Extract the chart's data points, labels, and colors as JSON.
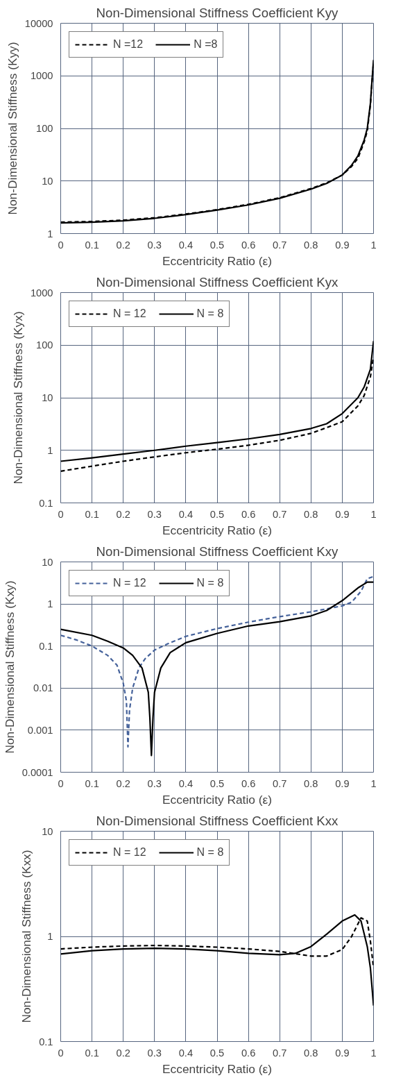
{
  "chart_data": [
    {
      "type": "line",
      "title": "Non-Dimensional Stiffness Coefficient Kyy",
      "xlabel": "Eccentricity Ratio (ε)",
      "ylabel": "Non-Dimensional Stiffness (Kyy)",
      "log": "y",
      "grid": true,
      "legend": "top left",
      "xlim": [
        0,
        1
      ],
      "xticks": [
        0,
        0.1,
        0.2,
        0.3,
        0.4,
        0.5,
        0.6,
        0.7,
        0.8,
        0.9,
        1
      ],
      "ylim": [
        1,
        10000
      ],
      "yticks": [
        1,
        10,
        100,
        1000,
        10000
      ],
      "series": [
        {
          "name": "N =12",
          "color": "#000000",
          "line_style": "dashed",
          "x": [
            0,
            0.1,
            0.2,
            0.3,
            0.4,
            0.5,
            0.6,
            0.7,
            0.8,
            0.85,
            0.9,
            0.93,
            0.95,
            0.97,
            0.98,
            0.99,
            0.995,
            1.0
          ],
          "values": [
            1.65,
            1.7,
            1.8,
            2.0,
            2.35,
            2.85,
            3.6,
            4.8,
            7.2,
            9.2,
            13,
            19,
            27,
            55,
            90,
            280,
            750,
            1800
          ]
        },
        {
          "name": "N =8",
          "color": "#000000",
          "line_style": "solid",
          "x": [
            0,
            0.1,
            0.2,
            0.3,
            0.4,
            0.5,
            0.6,
            0.7,
            0.8,
            0.85,
            0.9,
            0.93,
            0.95,
            0.97,
            0.98,
            0.99,
            0.995,
            1.0
          ],
          "values": [
            1.6,
            1.65,
            1.75,
            1.95,
            2.3,
            2.8,
            3.5,
            4.7,
            7,
            9,
            13,
            20,
            30,
            60,
            100,
            300,
            800,
            2000
          ]
        }
      ]
    },
    {
      "type": "line",
      "title": "Non-Dimensional Stiffness Coefficient Kyx",
      "xlabel": "Eccentricity Ratio (ε)",
      "ylabel": "Non-Dimensional Stiffness (Kyx)",
      "log": "y",
      "grid": true,
      "legend": "top left",
      "xlim": [
        0,
        1
      ],
      "xticks": [
        0,
        0.1,
        0.2,
        0.3,
        0.4,
        0.5,
        0.6,
        0.7,
        0.8,
        0.9,
        1
      ],
      "ylim": [
        0.1,
        1000
      ],
      "yticks": [
        0.1,
        1,
        10,
        100,
        1000
      ],
      "series": [
        {
          "name": "N = 12",
          "color": "#000000",
          "line_style": "dashed",
          "x": [
            0,
            0.1,
            0.2,
            0.3,
            0.4,
            0.5,
            0.6,
            0.7,
            0.8,
            0.85,
            0.9,
            0.95,
            0.97,
            0.99,
            1.0
          ],
          "values": [
            0.4,
            0.5,
            0.62,
            0.75,
            0.9,
            1.05,
            1.25,
            1.55,
            2.1,
            2.7,
            3.5,
            7,
            11,
            25,
            60
          ]
        },
        {
          "name": "N = 8",
          "color": "#000000",
          "line_style": "solid",
          "x": [
            0,
            0.1,
            0.2,
            0.3,
            0.4,
            0.5,
            0.6,
            0.7,
            0.8,
            0.85,
            0.9,
            0.95,
            0.97,
            0.99,
            1.0
          ],
          "values": [
            0.62,
            0.72,
            0.85,
            1.0,
            1.2,
            1.4,
            1.65,
            2.0,
            2.6,
            3.2,
            5,
            10,
            16,
            35,
            120
          ]
        }
      ]
    },
    {
      "type": "line",
      "title": "Non-Dimensional Stiffness Coefficient Kxy",
      "xlabel": "Eccentricity Ratio (ε)",
      "ylabel": "Non-Dimensional Stiffness (Kxy)",
      "log": "y",
      "grid": true,
      "legend": "top left",
      "xlim": [
        0,
        1
      ],
      "xticks": [
        0,
        0.1,
        0.2,
        0.3,
        0.4,
        0.5,
        0.6,
        0.7,
        0.8,
        0.9,
        1
      ],
      "ylim": [
        0.0001,
        10
      ],
      "yticks": [
        0.0001,
        0.001,
        0.01,
        0.1,
        1,
        10
      ],
      "series": [
        {
          "name": "N = 12",
          "color": "#44619a",
          "line_style": "dashed",
          "x": [
            0,
            0.05,
            0.1,
            0.15,
            0.18,
            0.2,
            0.21,
            0.215,
            0.22,
            0.23,
            0.25,
            0.27,
            0.3,
            0.35,
            0.4,
            0.5,
            0.6,
            0.7,
            0.8,
            0.9,
            0.93,
            0.96,
            0.98,
            1.0
          ],
          "values": [
            0.18,
            0.14,
            0.1,
            0.06,
            0.035,
            0.013,
            0.005,
            0.0004,
            0.003,
            0.01,
            0.03,
            0.05,
            0.08,
            0.12,
            0.17,
            0.26,
            0.37,
            0.5,
            0.65,
            0.9,
            1.1,
            2,
            4,
            4.5
          ]
        },
        {
          "name": "N = 8",
          "color": "#000000",
          "line_style": "solid",
          "x": [
            0,
            0.1,
            0.15,
            0.2,
            0.23,
            0.26,
            0.28,
            0.285,
            0.29,
            0.295,
            0.3,
            0.32,
            0.35,
            0.4,
            0.5,
            0.6,
            0.7,
            0.8,
            0.85,
            0.9,
            0.95,
            0.98,
            1.0
          ],
          "values": [
            0.25,
            0.18,
            0.13,
            0.09,
            0.06,
            0.03,
            0.008,
            0.002,
            0.00025,
            0.002,
            0.008,
            0.03,
            0.07,
            0.12,
            0.2,
            0.3,
            0.38,
            0.52,
            0.7,
            1.2,
            2.4,
            3.3,
            3.3
          ]
        }
      ]
    },
    {
      "type": "line",
      "title": "Non-Dimensional Stiffness Coefficient Kxx",
      "xlabel": "Eccentricity Ratio (ε)",
      "ylabel": "Non-Dimensional Stiffness (Kxx)",
      "log": "y",
      "grid": true,
      "legend": "top left",
      "xlim": [
        0,
        1
      ],
      "xticks": [
        0,
        0.1,
        0.2,
        0.3,
        0.4,
        0.5,
        0.6,
        0.7,
        0.8,
        0.9,
        1
      ],
      "ylim": [
        0.1,
        10
      ],
      "yticks": [
        0.1,
        1,
        10
      ],
      "series": [
        {
          "name": "N = 12",
          "color": "#000000",
          "line_style": "dashed",
          "x": [
            0,
            0.1,
            0.2,
            0.3,
            0.4,
            0.5,
            0.6,
            0.7,
            0.8,
            0.85,
            0.9,
            0.93,
            0.96,
            0.98,
            0.99,
            1.0
          ],
          "values": [
            0.76,
            0.79,
            0.81,
            0.82,
            0.81,
            0.79,
            0.76,
            0.72,
            0.65,
            0.65,
            0.75,
            1.0,
            1.5,
            1.4,
            0.9,
            0.5
          ]
        },
        {
          "name": "N = 8",
          "color": "#000000",
          "line_style": "solid",
          "x": [
            0,
            0.1,
            0.2,
            0.3,
            0.4,
            0.5,
            0.6,
            0.7,
            0.75,
            0.8,
            0.85,
            0.9,
            0.94,
            0.96,
            0.98,
            0.99,
            1.0
          ],
          "values": [
            0.68,
            0.73,
            0.76,
            0.77,
            0.76,
            0.73,
            0.69,
            0.67,
            0.69,
            0.8,
            1.05,
            1.4,
            1.6,
            1.4,
            0.8,
            0.5,
            0.22
          ]
        }
      ]
    }
  ]
}
